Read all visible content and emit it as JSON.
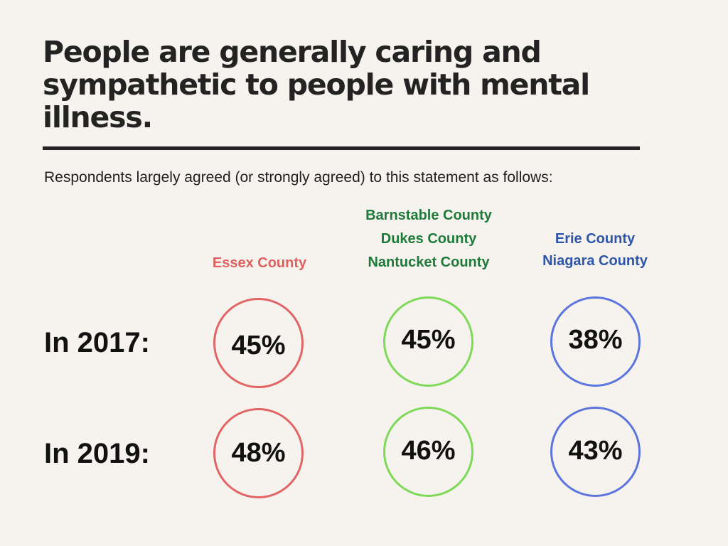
{
  "title": "People are generally caring and sympathetic to people with mental illness.",
  "subtitle": "Respondents largely agreed (or strongly agreed) to this statement as follows:",
  "chart_data": {
    "type": "table",
    "value_unit": "%",
    "groups": [
      {
        "counties": [
          "Essex County"
        ],
        "color": "#e06060",
        "ring_color": "#e36464"
      },
      {
        "counties": [
          "Barnstable County",
          "Dukes County",
          "Nantucket County"
        ],
        "color": "#1f7a3a",
        "ring_color": "#7ed957"
      },
      {
        "counties": [
          "Erie County",
          "Niagara County"
        ],
        "color": "#2f55a8",
        "ring_color": "#5b74de"
      }
    ],
    "rows": [
      {
        "label": "In 2017:",
        "values": [
          45,
          45,
          38
        ],
        "display": [
          "45%",
          "45%",
          "38%"
        ]
      },
      {
        "label": "In 2019:",
        "values": [
          48,
          46,
          43
        ],
        "display": [
          "48%",
          "46%",
          "43%"
        ]
      }
    ]
  }
}
